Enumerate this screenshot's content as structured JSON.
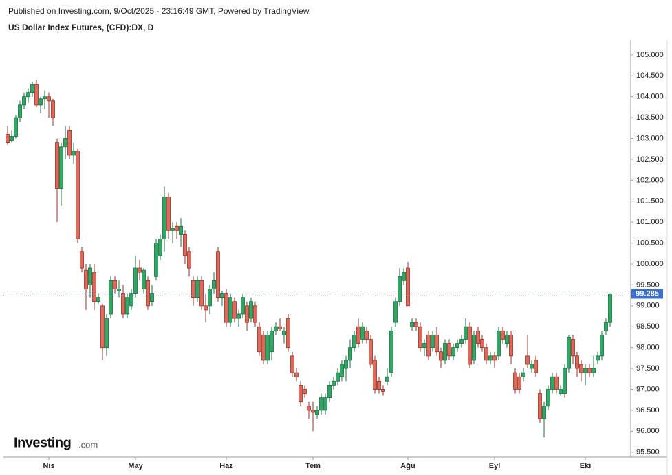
{
  "header": {
    "published": "Published on Investing.com, 9/Oct/2025 - 23:16:49 GMT, Powered by TradingView."
  },
  "logo": {
    "name": "Investing",
    "suffix": ".com"
  },
  "chart_data": {
    "type": "candlestick",
    "title": "US Dollar Index Futures, (CFD):DX, D",
    "up_color": "#2fa865",
    "down_color": "#e06a5a",
    "up_border": "#1c6b3f",
    "down_border": "#8f3328",
    "price_line_color": "#3d6fc9",
    "categories": [
      null,
      null,
      null,
      null,
      null,
      null,
      null,
      null,
      null,
      null,
      "Nis",
      null,
      null,
      null,
      null,
      null,
      null,
      null,
      null,
      null,
      null,
      null,
      null,
      null,
      null,
      null,
      null,
      null,
      null,
      null,
      null,
      "May",
      null,
      null,
      null,
      null,
      null,
      null,
      null,
      null,
      null,
      null,
      null,
      null,
      null,
      null,
      null,
      null,
      null,
      null,
      null,
      null,
      null,
      "Haz",
      null,
      null,
      null,
      null,
      null,
      null,
      null,
      null,
      null,
      null,
      null,
      null,
      null,
      null,
      null,
      null,
      null,
      null,
      null,
      null,
      "Tem",
      null,
      null,
      null,
      null,
      null,
      null,
      null,
      null,
      null,
      null,
      null,
      null,
      null,
      null,
      null,
      null,
      null,
      null,
      null,
      null,
      null,
      null,
      "Ağu",
      null,
      null,
      null,
      null,
      null,
      null,
      null,
      null,
      null,
      null,
      null,
      null,
      null,
      null,
      null,
      null,
      null,
      null,
      null,
      null,
      "Eyl",
      null,
      null,
      null,
      null,
      null,
      null,
      null,
      null,
      null,
      null,
      null,
      null,
      null,
      null,
      null,
      null,
      null,
      null,
      null,
      null,
      null,
      "Eki",
      null,
      null,
      null,
      null,
      null,
      null
    ],
    "open": [
      103.1,
      102.95,
      103.05,
      103.5,
      103.8,
      104.0,
      104.1,
      104.3,
      103.8,
      103.95,
      104.0,
      103.9,
      102.9,
      101.8,
      102.8,
      103.2,
      102.6,
      102.7,
      100.3,
      99.85,
      99.5,
      99.8,
      99.1,
      99.0,
      98.0,
      98.8,
      99.6,
      99.35,
      99.3,
      98.8,
      99.0,
      99.3,
      99.9,
      99.4,
      99.6,
      99.1,
      99.7,
      100.2,
      100.6,
      101.6,
      100.8,
      100.9,
      100.7,
      100.7,
      100.3,
      99.6,
      99.2,
      99.6,
      99.0,
      99.0,
      99.4,
      100.3,
      99.2,
      99.3,
      98.6,
      99.1,
      98.7,
      98.8,
      99.0,
      98.7,
      99.0,
      98.5,
      98.3,
      97.7,
      97.9,
      98.4,
      98.5,
      98.3,
      98.7,
      97.8,
      97.4,
      97.1,
      97.0,
      96.6,
      96.5,
      96.4,
      96.5,
      96.5,
      96.8,
      97.1,
      97.2,
      97.3,
      97.5,
      97.7,
      98.0,
      98.5,
      98.2,
      98.4,
      98.2,
      97.7,
      97.2,
      97.0,
      97.2,
      97.4,
      98.6,
      99.1,
      99.6,
      99.9,
      98.5,
      98.6,
      98.5,
      98.0,
      98.3,
      98.0,
      98.3,
      97.9,
      97.7,
      98.1,
      97.8,
      98.0,
      98.1,
      98.2,
      98.5,
      97.7,
      98.4,
      98.2,
      98.0,
      97.7,
      97.8,
      97.8,
      98.4,
      98.1,
      98.3,
      97.4,
      97.3,
      97.3,
      97.8,
      97.5,
      97.7,
      96.9,
      96.3,
      96.6,
      97.0,
      97.3,
      96.9,
      96.9,
      97.5,
      98.2,
      97.8,
      97.6,
      97.4,
      97.5,
      97.4,
      97.7,
      97.8,
      98.4,
      98.6
    ],
    "high": [
      103.3,
      103.2,
      103.55,
      103.9,
      104.1,
      104.2,
      104.35,
      104.4,
      104.0,
      104.15,
      104.1,
      103.95,
      103.0,
      102.9,
      103.3,
      103.3,
      102.9,
      102.75,
      100.4,
      100.0,
      100.0,
      100.0,
      99.3,
      99.05,
      98.8,
      99.7,
      99.7,
      99.6,
      99.5,
      99.3,
      99.4,
      100.2,
      100.1,
      99.9,
      99.7,
      99.5,
      100.6,
      100.7,
      101.85,
      101.7,
      101.0,
      101.0,
      101.1,
      100.8,
      100.4,
      99.7,
      99.7,
      99.7,
      99.3,
      99.5,
      99.8,
      100.4,
      99.35,
      99.4,
      99.3,
      99.2,
      98.9,
      99.3,
      99.1,
      99.2,
      99.1,
      98.6,
      98.4,
      98.4,
      98.5,
      98.6,
      98.7,
      98.5,
      98.8,
      97.9,
      97.5,
      97.2,
      97.1,
      96.7,
      96.7,
      96.6,
      96.9,
      96.9,
      97.2,
      97.3,
      97.5,
      97.7,
      97.8,
      98.2,
      98.4,
      98.7,
      98.6,
      98.5,
      98.3,
      97.8,
      97.3,
      97.1,
      97.5,
      98.5,
      99.2,
      99.9,
      99.9,
      100.05,
      98.7,
      98.7,
      98.6,
      98.2,
      98.4,
      98.4,
      98.5,
      98.0,
      98.2,
      98.2,
      98.1,
      98.2,
      98.3,
      98.7,
      98.6,
      98.4,
      98.5,
      98.3,
      98.1,
      97.9,
      97.9,
      98.5,
      98.5,
      98.4,
      98.4,
      97.5,
      97.4,
      97.5,
      98.3,
      97.7,
      97.8,
      97.0,
      96.7,
      97.1,
      97.4,
      97.4,
      97.1,
      97.6,
      98.3,
      98.3,
      97.9,
      97.7,
      97.6,
      97.6,
      97.8,
      97.9,
      98.4,
      98.7,
      99.3
    ],
    "low": [
      102.85,
      102.9,
      103.0,
      103.4,
      103.7,
      103.85,
      104.0,
      103.75,
      103.6,
      103.7,
      103.5,
      103.3,
      101.0,
      101.4,
      102.5,
      102.5,
      102.4,
      100.5,
      99.8,
      98.9,
      99.2,
      98.9,
      99.05,
      97.7,
      97.8,
      98.7,
      99.3,
      99.2,
      98.7,
      98.7,
      98.9,
      99.2,
      99.6,
      99.3,
      98.9,
      99.0,
      99.6,
      100.1,
      100.3,
      100.6,
      100.5,
      100.6,
      100.4,
      100.0,
      99.7,
      99.0,
      99.1,
      98.9,
      98.6,
      98.8,
      99.3,
      99.1,
      99.0,
      98.5,
      98.5,
      98.6,
      98.5,
      98.7,
      98.4,
      98.6,
      98.5,
      97.8,
      97.6,
      97.6,
      97.7,
      98.3,
      98.4,
      98.1,
      97.9,
      97.3,
      97.2,
      96.6,
      96.8,
      96.3,
      96.0,
      96.3,
      96.4,
      96.4,
      96.7,
      97.0,
      97.1,
      97.2,
      97.2,
      97.5,
      97.9,
      98.0,
      98.1,
      98.1,
      97.5,
      96.9,
      96.9,
      96.85,
      97.1,
      97.3,
      98.5,
      99.0,
      99.5,
      99.0,
      98.4,
      98.4,
      97.9,
      97.8,
      97.7,
      97.9,
      97.8,
      97.5,
      97.6,
      97.7,
      97.7,
      97.9,
      98.0,
      98.1,
      97.5,
      97.6,
      98.0,
      97.9,
      97.6,
      97.6,
      97.5,
      97.7,
      98.1,
      98.0,
      97.6,
      96.9,
      96.9,
      97.2,
      97.5,
      97.4,
      97.3,
      96.2,
      95.85,
      96.5,
      96.9,
      96.9,
      96.85,
      96.8,
      97.4,
      97.6,
      97.3,
      97.2,
      97.1,
      97.3,
      97.3,
      97.6,
      97.7,
      98.3,
      98.5
    ],
    "close": [
      102.9,
      103.05,
      103.5,
      103.8,
      104.0,
      104.1,
      104.3,
      103.8,
      103.95,
      104.0,
      103.9,
      103.5,
      101.8,
      102.8,
      103.0,
      102.6,
      102.7,
      100.6,
      99.9,
      99.4,
      99.9,
      99.1,
      99.2,
      98.0,
      98.7,
      99.6,
      99.4,
      99.4,
      98.8,
      99.2,
      99.3,
      99.9,
      99.8,
      99.85,
      99.0,
      99.3,
      100.5,
      100.6,
      101.6,
      100.8,
      100.85,
      100.8,
      100.9,
      100.2,
      99.9,
      99.2,
      99.6,
      99.0,
      98.9,
      99.4,
      99.6,
      99.2,
      99.3,
      98.6,
      99.2,
      98.7,
      98.8,
      99.2,
      98.6,
      99.1,
      98.6,
      97.9,
      97.7,
      98.3,
      98.4,
      98.5,
      98.45,
      98.4,
      98.0,
      97.4,
      97.3,
      96.7,
      96.9,
      96.5,
      96.45,
      96.5,
      96.8,
      96.8,
      97.1,
      97.2,
      97.4,
      97.6,
      97.7,
      98.0,
      98.3,
      98.1,
      98.5,
      98.2,
      97.6,
      97.0,
      97.0,
      96.95,
      97.3,
      98.4,
      99.1,
      99.7,
      99.8,
      99.0,
      98.6,
      98.5,
      98.0,
      98.1,
      97.8,
      98.3,
      97.9,
      97.7,
      98.1,
      97.8,
      98.0,
      98.1,
      98.2,
      98.5,
      97.6,
      98.3,
      98.1,
      98.0,
      97.7,
      97.8,
      97.7,
      98.4,
      98.2,
      98.3,
      97.8,
      97.0,
      97.0,
      97.4,
      97.6,
      97.6,
      97.4,
      96.3,
      96.6,
      97.0,
      97.3,
      97.0,
      97.0,
      97.5,
      98.25,
      97.8,
      97.5,
      97.4,
      97.5,
      97.4,
      97.5,
      97.8,
      98.3,
      98.6,
      99.285
    ],
    "ylim": [
      95.38,
      105.36
    ],
    "yticks": [
      {
        "value": 95.5,
        "label": "95.500"
      },
      {
        "value": 96,
        "label": "96.000"
      },
      {
        "value": 96.5,
        "label": "96.500"
      },
      {
        "value": 97,
        "label": "97.000"
      },
      {
        "value": 97.5,
        "label": "97.500"
      },
      {
        "value": 98,
        "label": "98.000"
      },
      {
        "value": 98.5,
        "label": "98.500"
      },
      {
        "value": 99,
        "label": "99.000"
      },
      {
        "value": 99.5,
        "label": "99.500"
      },
      {
        "value": 100,
        "label": "100.000"
      },
      {
        "value": 100.5,
        "label": "100.500"
      },
      {
        "value": 101,
        "label": "101.000"
      },
      {
        "value": 101.5,
        "label": "101.500"
      },
      {
        "value": 102,
        "label": "102.000"
      },
      {
        "value": 102.5,
        "label": "102.500"
      },
      {
        "value": 103,
        "label": "103.000"
      },
      {
        "value": 103.5,
        "label": "103.500"
      },
      {
        "value": 104,
        "label": "104.000"
      },
      {
        "value": 104.5,
        "label": "104.500"
      },
      {
        "value": 105,
        "label": "105.000"
      }
    ]
  }
}
